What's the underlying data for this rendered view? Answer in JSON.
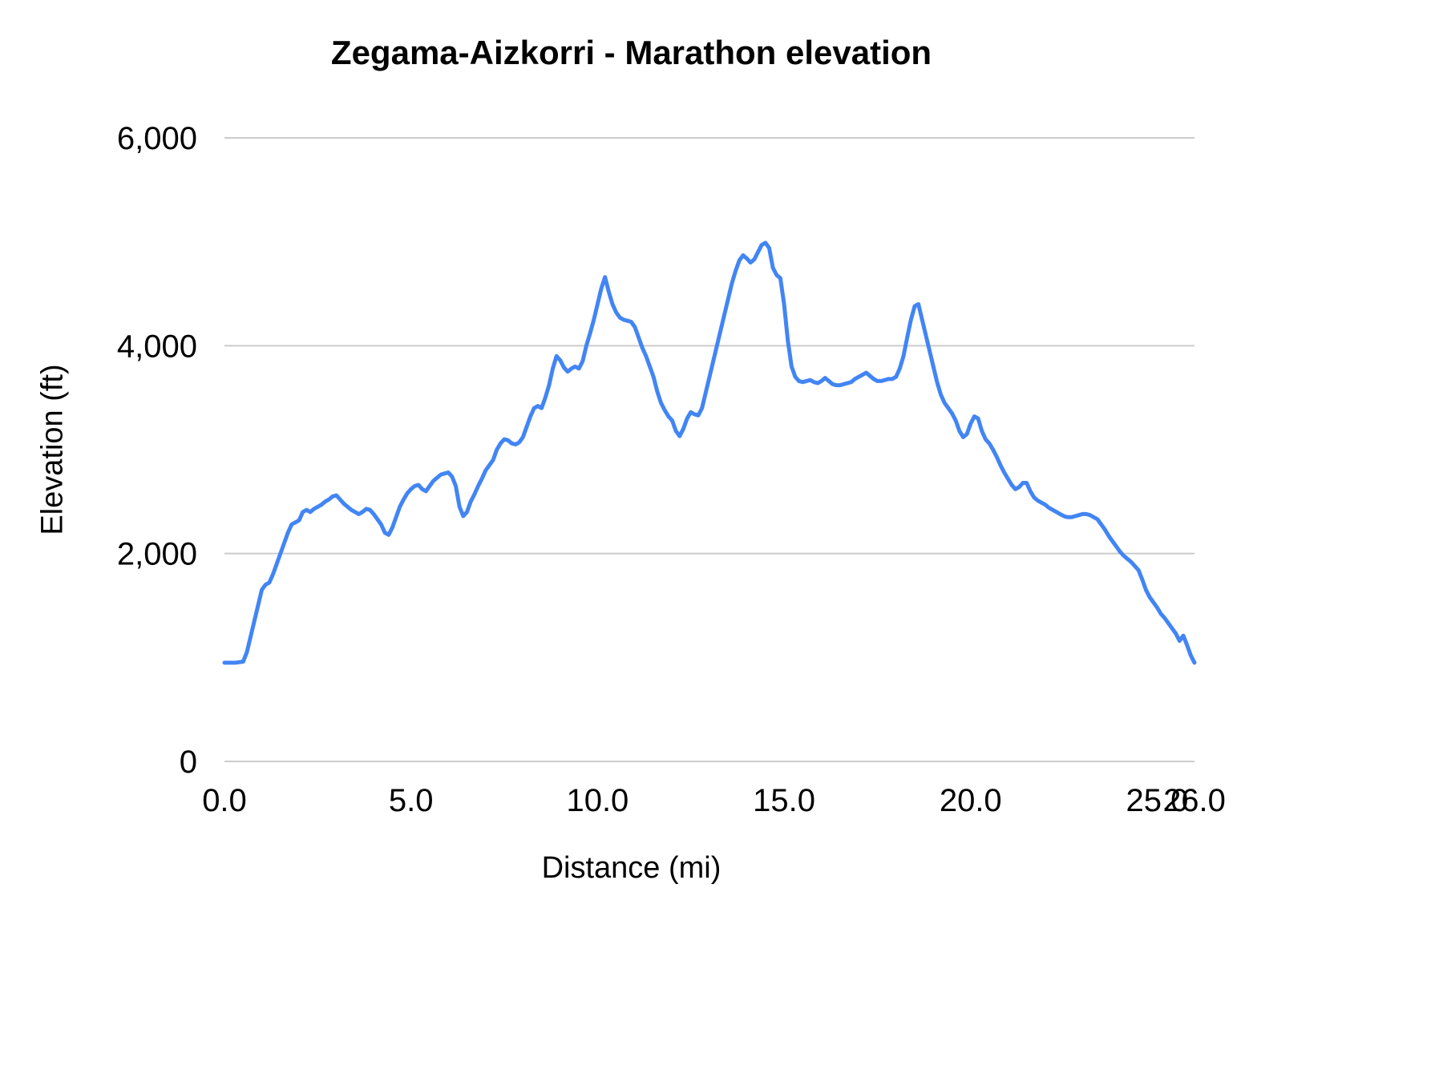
{
  "chart_data": {
    "type": "line",
    "title": "Zegama-Aizkorri - Marathon elevation",
    "xlabel": "Distance (mi)",
    "ylabel": "Elevation (ft)",
    "xlim": [
      0,
      26
    ],
    "ylim": [
      0,
      6000
    ],
    "xticks": [
      0.0,
      5.0,
      10.0,
      15.0,
      20.0,
      25.0,
      26.0
    ],
    "xtick_labels": [
      "0.0",
      "5.0",
      "10.0",
      "15.0",
      "20.0",
      "25.0",
      "26.0"
    ],
    "yticks": [
      0,
      2000,
      4000,
      6000
    ],
    "ytick_labels": [
      "0",
      "2,000",
      "4,000",
      "6,000"
    ],
    "grid": "horizontal",
    "legend": "none",
    "line_color": "#4285f4",
    "grid_color": "#cccccc",
    "series": [
      {
        "name": "elevation",
        "points": [
          [
            0.0,
            950
          ],
          [
            0.3,
            950
          ],
          [
            0.5,
            960
          ],
          [
            0.6,
            1050
          ],
          [
            0.7,
            1200
          ],
          [
            0.8,
            1350
          ],
          [
            0.9,
            1500
          ],
          [
            1.0,
            1650
          ],
          [
            1.1,
            1700
          ],
          [
            1.2,
            1720
          ],
          [
            1.3,
            1800
          ],
          [
            1.4,
            1900
          ],
          [
            1.5,
            2000
          ],
          [
            1.6,
            2100
          ],
          [
            1.7,
            2200
          ],
          [
            1.8,
            2280
          ],
          [
            1.9,
            2300
          ],
          [
            2.0,
            2320
          ],
          [
            2.1,
            2400
          ],
          [
            2.2,
            2420
          ],
          [
            2.3,
            2400
          ],
          [
            2.4,
            2430
          ],
          [
            2.5,
            2450
          ],
          [
            2.6,
            2470
          ],
          [
            2.7,
            2500
          ],
          [
            2.8,
            2520
          ],
          [
            2.9,
            2550
          ],
          [
            3.0,
            2560
          ],
          [
            3.1,
            2520
          ],
          [
            3.2,
            2480
          ],
          [
            3.3,
            2450
          ],
          [
            3.4,
            2420
          ],
          [
            3.5,
            2400
          ],
          [
            3.6,
            2380
          ],
          [
            3.7,
            2400
          ],
          [
            3.8,
            2430
          ],
          [
            3.9,
            2420
          ],
          [
            4.0,
            2380
          ],
          [
            4.1,
            2330
          ],
          [
            4.2,
            2280
          ],
          [
            4.3,
            2200
          ],
          [
            4.4,
            2180
          ],
          [
            4.5,
            2250
          ],
          [
            4.6,
            2350
          ],
          [
            4.7,
            2450
          ],
          [
            4.8,
            2520
          ],
          [
            4.9,
            2580
          ],
          [
            5.0,
            2620
          ],
          [
            5.1,
            2650
          ],
          [
            5.2,
            2660
          ],
          [
            5.3,
            2620
          ],
          [
            5.4,
            2600
          ],
          [
            5.5,
            2650
          ],
          [
            5.6,
            2700
          ],
          [
            5.7,
            2730
          ],
          [
            5.8,
            2760
          ],
          [
            5.9,
            2770
          ],
          [
            6.0,
            2780
          ],
          [
            6.1,
            2740
          ],
          [
            6.2,
            2650
          ],
          [
            6.3,
            2450
          ],
          [
            6.4,
            2360
          ],
          [
            6.5,
            2400
          ],
          [
            6.6,
            2500
          ],
          [
            6.7,
            2570
          ],
          [
            6.8,
            2650
          ],
          [
            6.9,
            2720
          ],
          [
            7.0,
            2800
          ],
          [
            7.1,
            2850
          ],
          [
            7.2,
            2900
          ],
          [
            7.3,
            3000
          ],
          [
            7.4,
            3060
          ],
          [
            7.5,
            3100
          ],
          [
            7.6,
            3090
          ],
          [
            7.7,
            3060
          ],
          [
            7.8,
            3050
          ],
          [
            7.9,
            3070
          ],
          [
            8.0,
            3120
          ],
          [
            8.1,
            3220
          ],
          [
            8.2,
            3320
          ],
          [
            8.3,
            3400
          ],
          [
            8.4,
            3420
          ],
          [
            8.5,
            3400
          ],
          [
            8.6,
            3500
          ],
          [
            8.7,
            3620
          ],
          [
            8.8,
            3780
          ],
          [
            8.9,
            3900
          ],
          [
            9.0,
            3860
          ],
          [
            9.1,
            3790
          ],
          [
            9.2,
            3750
          ],
          [
            9.3,
            3780
          ],
          [
            9.4,
            3800
          ],
          [
            9.5,
            3780
          ],
          [
            9.6,
            3850
          ],
          [
            9.7,
            4000
          ],
          [
            9.8,
            4120
          ],
          [
            9.9,
            4250
          ],
          [
            10.0,
            4400
          ],
          [
            10.1,
            4550
          ],
          [
            10.2,
            4660
          ],
          [
            10.3,
            4520
          ],
          [
            10.4,
            4400
          ],
          [
            10.5,
            4320
          ],
          [
            10.6,
            4270
          ],
          [
            10.7,
            4250
          ],
          [
            10.8,
            4240
          ],
          [
            10.9,
            4230
          ],
          [
            11.0,
            4180
          ],
          [
            11.1,
            4080
          ],
          [
            11.2,
            3980
          ],
          [
            11.3,
            3900
          ],
          [
            11.4,
            3800
          ],
          [
            11.5,
            3700
          ],
          [
            11.6,
            3560
          ],
          [
            11.7,
            3450
          ],
          [
            11.8,
            3380
          ],
          [
            11.9,
            3320
          ],
          [
            12.0,
            3280
          ],
          [
            12.1,
            3180
          ],
          [
            12.2,
            3130
          ],
          [
            12.3,
            3200
          ],
          [
            12.4,
            3300
          ],
          [
            12.5,
            3360
          ],
          [
            12.6,
            3340
          ],
          [
            12.7,
            3330
          ],
          [
            12.8,
            3400
          ],
          [
            12.9,
            3550
          ],
          [
            13.0,
            3700
          ],
          [
            13.1,
            3850
          ],
          [
            13.2,
            4000
          ],
          [
            13.3,
            4150
          ],
          [
            13.4,
            4300
          ],
          [
            13.5,
            4450
          ],
          [
            13.6,
            4600
          ],
          [
            13.7,
            4720
          ],
          [
            13.8,
            4820
          ],
          [
            13.9,
            4870
          ],
          [
            14.0,
            4840
          ],
          [
            14.1,
            4800
          ],
          [
            14.2,
            4830
          ],
          [
            14.3,
            4900
          ],
          [
            14.4,
            4970
          ],
          [
            14.5,
            4990
          ],
          [
            14.6,
            4940
          ],
          [
            14.7,
            4750
          ],
          [
            14.8,
            4680
          ],
          [
            14.9,
            4650
          ],
          [
            15.0,
            4400
          ],
          [
            15.1,
            4050
          ],
          [
            15.2,
            3800
          ],
          [
            15.3,
            3700
          ],
          [
            15.4,
            3660
          ],
          [
            15.5,
            3650
          ],
          [
            15.6,
            3660
          ],
          [
            15.7,
            3670
          ],
          [
            15.8,
            3650
          ],
          [
            15.9,
            3640
          ],
          [
            16.0,
            3660
          ],
          [
            16.1,
            3690
          ],
          [
            16.2,
            3660
          ],
          [
            16.3,
            3630
          ],
          [
            16.4,
            3620
          ],
          [
            16.5,
            3620
          ],
          [
            16.6,
            3630
          ],
          [
            16.7,
            3640
          ],
          [
            16.8,
            3650
          ],
          [
            16.9,
            3680
          ],
          [
            17.0,
            3700
          ],
          [
            17.1,
            3720
          ],
          [
            17.2,
            3740
          ],
          [
            17.3,
            3710
          ],
          [
            17.4,
            3680
          ],
          [
            17.5,
            3660
          ],
          [
            17.6,
            3660
          ],
          [
            17.7,
            3670
          ],
          [
            17.8,
            3680
          ],
          [
            17.9,
            3680
          ],
          [
            18.0,
            3700
          ],
          [
            18.1,
            3780
          ],
          [
            18.2,
            3900
          ],
          [
            18.3,
            4080
          ],
          [
            18.4,
            4250
          ],
          [
            18.5,
            4380
          ],
          [
            18.6,
            4400
          ],
          [
            18.7,
            4250
          ],
          [
            18.8,
            4100
          ],
          [
            18.9,
            3950
          ],
          [
            19.0,
            3800
          ],
          [
            19.1,
            3650
          ],
          [
            19.2,
            3530
          ],
          [
            19.3,
            3450
          ],
          [
            19.4,
            3400
          ],
          [
            19.5,
            3350
          ],
          [
            19.6,
            3280
          ],
          [
            19.7,
            3180
          ],
          [
            19.8,
            3120
          ],
          [
            19.9,
            3150
          ],
          [
            20.0,
            3250
          ],
          [
            20.1,
            3320
          ],
          [
            20.2,
            3300
          ],
          [
            20.3,
            3180
          ],
          [
            20.4,
            3100
          ],
          [
            20.5,
            3060
          ],
          [
            20.6,
            3000
          ],
          [
            20.7,
            2930
          ],
          [
            20.8,
            2850
          ],
          [
            20.9,
            2780
          ],
          [
            21.0,
            2720
          ],
          [
            21.1,
            2660
          ],
          [
            21.2,
            2620
          ],
          [
            21.3,
            2640
          ],
          [
            21.4,
            2680
          ],
          [
            21.5,
            2680
          ],
          [
            21.6,
            2600
          ],
          [
            21.7,
            2540
          ],
          [
            21.8,
            2510
          ],
          [
            21.9,
            2490
          ],
          [
            22.0,
            2470
          ],
          [
            22.1,
            2440
          ],
          [
            22.2,
            2420
          ],
          [
            22.3,
            2400
          ],
          [
            22.4,
            2380
          ],
          [
            22.5,
            2360
          ],
          [
            22.6,
            2350
          ],
          [
            22.7,
            2350
          ],
          [
            22.8,
            2360
          ],
          [
            22.9,
            2370
          ],
          [
            23.0,
            2380
          ],
          [
            23.1,
            2380
          ],
          [
            23.2,
            2370
          ],
          [
            23.3,
            2350
          ],
          [
            23.4,
            2330
          ],
          [
            23.5,
            2280
          ],
          [
            23.6,
            2230
          ],
          [
            23.7,
            2170
          ],
          [
            23.8,
            2120
          ],
          [
            23.9,
            2070
          ],
          [
            24.0,
            2020
          ],
          [
            24.1,
            1980
          ],
          [
            24.2,
            1950
          ],
          [
            24.3,
            1920
          ],
          [
            24.4,
            1880
          ],
          [
            24.5,
            1840
          ],
          [
            24.6,
            1750
          ],
          [
            24.7,
            1650
          ],
          [
            24.8,
            1580
          ],
          [
            24.9,
            1530
          ],
          [
            25.0,
            1480
          ],
          [
            25.1,
            1420
          ],
          [
            25.2,
            1380
          ],
          [
            25.3,
            1330
          ],
          [
            25.4,
            1280
          ],
          [
            25.5,
            1230
          ],
          [
            25.6,
            1160
          ],
          [
            25.7,
            1210
          ],
          [
            25.8,
            1120
          ],
          [
            25.9,
            1020
          ],
          [
            26.0,
            950
          ]
        ]
      }
    ]
  }
}
